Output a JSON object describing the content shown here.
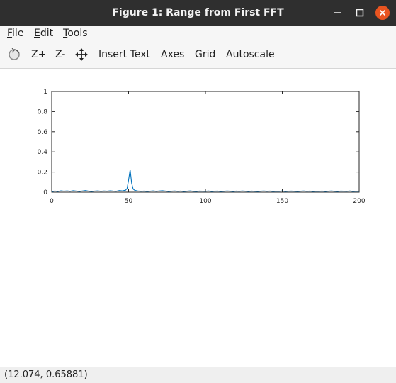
{
  "window": {
    "title": "Figure 1: Range from First FFT",
    "controls": {
      "minimize_icon": "minimize-icon",
      "maximize_icon": "maximize-icon",
      "close_icon": "close-icon",
      "close_color": "#e95420"
    }
  },
  "menubar": {
    "items": [
      {
        "label": "File",
        "mnemonic": "F"
      },
      {
        "label": "Edit",
        "mnemonic": "E"
      },
      {
        "label": "Tools",
        "mnemonic": "T"
      }
    ]
  },
  "toolbar": {
    "rotate_icon": "rotate-icon",
    "zoom_in_label": "Z+",
    "zoom_out_label": "Z-",
    "pan_icon": "pan-icon",
    "insert_text_label": "Insert Text",
    "axes_label": "Axes",
    "grid_label": "Grid",
    "autoscale_label": "Autoscale"
  },
  "chart_data": {
    "type": "line",
    "title": "",
    "xlabel": "",
    "ylabel": "",
    "xlim": [
      0,
      200
    ],
    "ylim": [
      0,
      1
    ],
    "xticks": [
      0,
      50,
      100,
      150,
      200
    ],
    "yticks": [
      0,
      0.2,
      0.4,
      0.6,
      0.8,
      1
    ],
    "ytick_labels": [
      "0",
      "0.2",
      "0.4",
      "0.6",
      "0.8",
      "1"
    ],
    "grid": false,
    "line_color": "#0072bd",
    "series": [
      {
        "x": [
          0,
          2,
          4,
          6,
          8,
          10,
          12,
          14,
          16,
          18,
          20,
          22,
          24,
          26,
          28,
          30,
          32,
          34,
          36,
          38,
          40,
          42,
          44,
          46,
          48,
          49,
          50,
          51,
          52,
          53,
          54,
          56,
          58,
          60,
          62,
          64,
          66,
          68,
          70,
          72,
          74,
          76,
          78,
          80,
          82,
          84,
          86,
          88,
          90,
          92,
          94,
          96,
          98,
          100,
          102,
          104,
          106,
          108,
          110,
          112,
          114,
          116,
          118,
          120,
          122,
          124,
          126,
          128,
          130,
          132,
          134,
          136,
          138,
          140,
          142,
          144,
          146,
          148,
          150,
          152,
          154,
          156,
          158,
          160,
          162,
          164,
          166,
          168,
          170,
          172,
          174,
          176,
          178,
          180,
          182,
          184,
          186,
          188,
          190,
          192,
          194,
          196,
          198,
          200
        ],
        "y": [
          0.005,
          0.012,
          0.008,
          0.014,
          0.01,
          0.013,
          0.009,
          0.015,
          0.011,
          0.008,
          0.012,
          0.016,
          0.01,
          0.007,
          0.011,
          0.013,
          0.009,
          0.012,
          0.01,
          0.014,
          0.011,
          0.009,
          0.016,
          0.013,
          0.02,
          0.035,
          0.12,
          0.225,
          0.09,
          0.03,
          0.018,
          0.012,
          0.009,
          0.011,
          0.008,
          0.01,
          0.013,
          0.009,
          0.012,
          0.015,
          0.011,
          0.008,
          0.01,
          0.012,
          0.009,
          0.011,
          0.007,
          0.01,
          0.013,
          0.009,
          0.008,
          0.011,
          0.01,
          0.009,
          0.012,
          0.008,
          0.01,
          0.011,
          0.007,
          0.009,
          0.012,
          0.01,
          0.008,
          0.011,
          0.009,
          0.012,
          0.01,
          0.008,
          0.011,
          0.009,
          0.007,
          0.01,
          0.012,
          0.009,
          0.011,
          0.008,
          0.01,
          0.009,
          0.012,
          0.008,
          0.01,
          0.011,
          0.009,
          0.007,
          0.01,
          0.012,
          0.009,
          0.011,
          0.008,
          0.01,
          0.009,
          0.011,
          0.007,
          0.01,
          0.012,
          0.009,
          0.008,
          0.011,
          0.01,
          0.009,
          0.012,
          0.008,
          0.01,
          0.009
        ]
      }
    ]
  },
  "statusbar": {
    "coords": "(12.074, 0.65881)"
  }
}
